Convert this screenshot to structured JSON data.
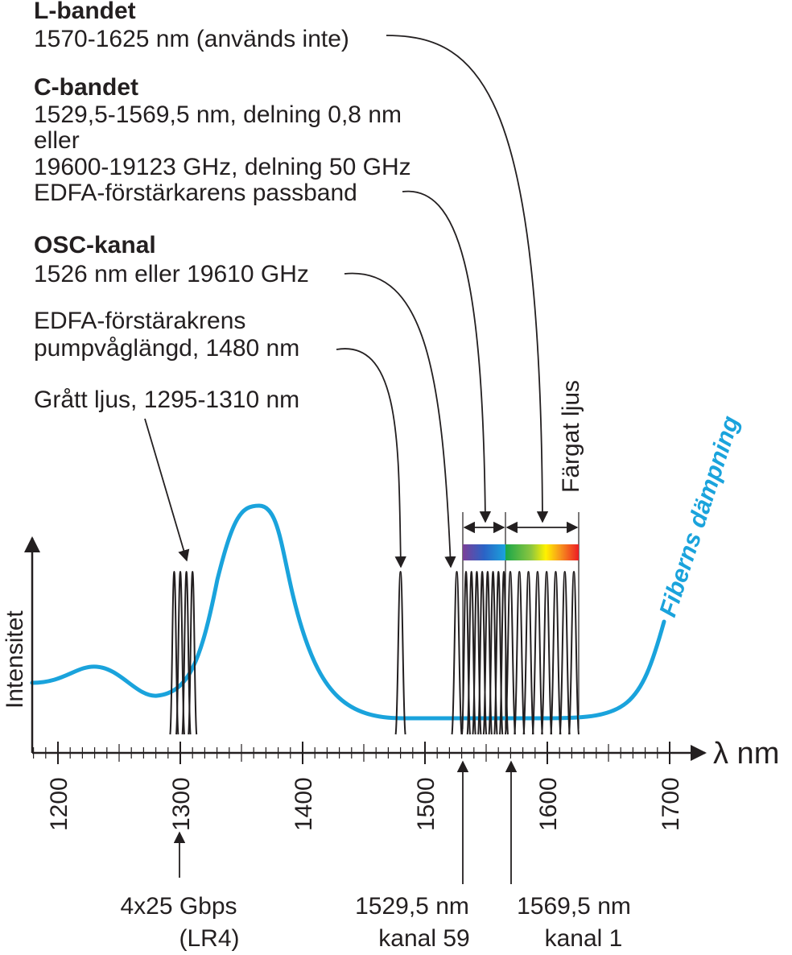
{
  "colors": {
    "attenuation_curve": "#1aa3dc",
    "ink": "#231f20"
  },
  "axis": {
    "x_unit": "λ nm",
    "y_label": "Intensitet",
    "ticks": [
      "1200",
      "1300",
      "1400",
      "1500",
      "1600",
      "1700"
    ]
  },
  "annotations": {
    "l_band": {
      "title": "L-bandet",
      "line1": "1570-1625 nm (används inte)"
    },
    "c_band": {
      "title": "C-bandet",
      "line1": "1529,5-1569,5 nm, delning 0,8 nm",
      "line2": "eller",
      "line3": "19600-19123 GHz, delning 50 GHz",
      "line4": "EDFA-förstärkarens passband"
    },
    "osc": {
      "title": "OSC-kanal",
      "line1": "1526 nm eller 19610 GHz"
    },
    "pump": {
      "line1": "EDFA-förstärakrens",
      "line2": "pumpvåglängd, 1480 nm"
    },
    "grey": {
      "line1": "Grått ljus, 1295-1310 nm"
    },
    "colored_light": "Färgat ljus",
    "attenuation": "Fiberns dämpning"
  },
  "bottom_labels": {
    "lr4": {
      "line1": "4x25 Gbps",
      "line2": "(LR4)"
    },
    "ch59": {
      "line1": "1529,5 nm",
      "line2": "kanal 59"
    },
    "ch1": {
      "line1": "1569,5 nm",
      "line2": "kanal 1"
    }
  },
  "chart_data": {
    "type": "line",
    "xlim": [
      1180,
      1720
    ],
    "x_ticks": [
      1200,
      1300,
      1400,
      1500,
      1600,
      1700
    ],
    "channel_peaks_nm": {
      "grey_light": [
        1295,
        1300,
        1305,
        1310
      ],
      "edfa_pump": [
        1480
      ],
      "osc": [
        1526
      ],
      "c_band_start": 1529.5,
      "c_band_end": 1569.5,
      "l_band_start": 1570,
      "l_band_end": 1625
    }
  }
}
